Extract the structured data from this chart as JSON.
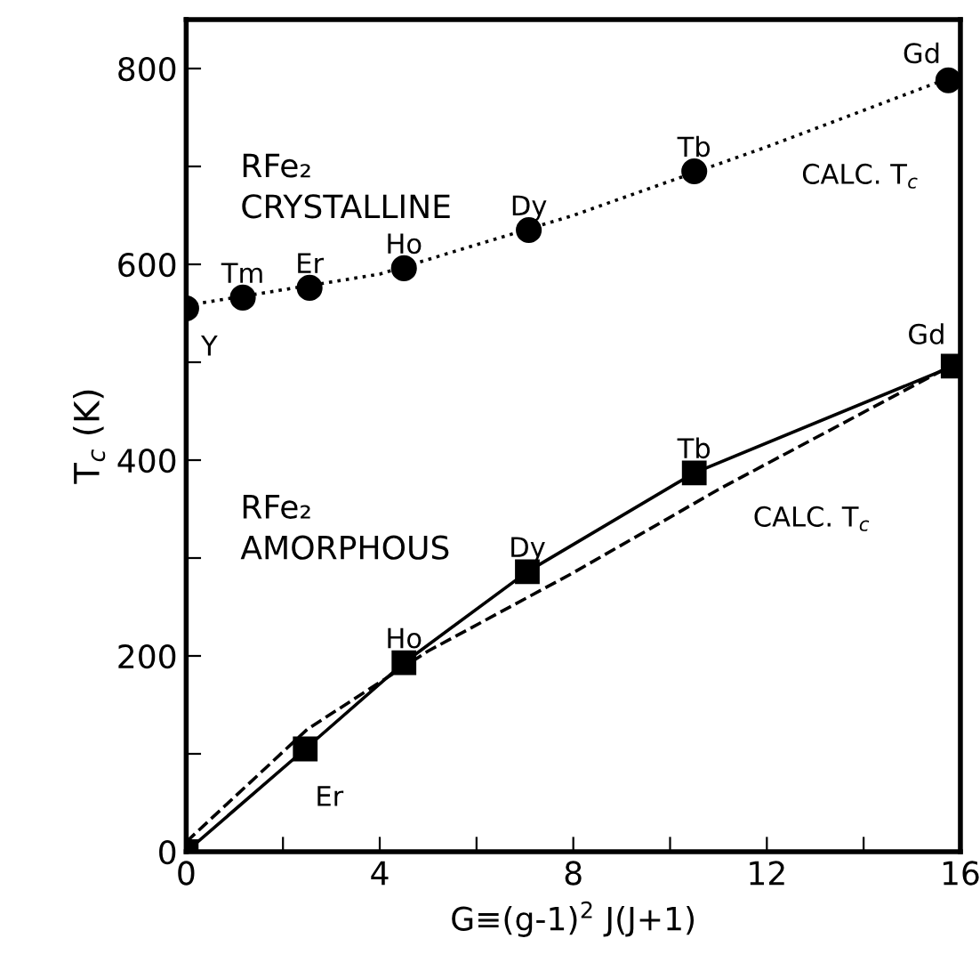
{
  "chart_data": {
    "type": "scatter",
    "xlabel": "G≡(g-1)$^{2}$ J(J+1)",
    "ylabel": "T$_{c}$ (K)",
    "xlim": [
      0,
      16
    ],
    "ylim": [
      0,
      850
    ],
    "xticks": [
      0,
      {
        "value": 2,
        "label": null
      },
      4,
      {
        "value": 6,
        "label": null
      },
      8,
      {
        "value": 10,
        "label": null
      },
      12,
      {
        "value": 14,
        "label": null
      },
      16
    ],
    "yticks": [
      0,
      {
        "value": 100,
        "label": null
      },
      200,
      {
        "value": 300,
        "label": null
      },
      400,
      {
        "value": 500,
        "label": null
      },
      600,
      {
        "value": 700,
        "label": null
      },
      800
    ],
    "grid": false,
    "legend": false,
    "series": [
      {
        "color": "#000000",
        "marker": "circle",
        "x": [
          0,
          1.17,
          2.55,
          4.5,
          7.08,
          10.5,
          15.75
        ],
        "values": [
          555,
          566,
          576,
          596,
          635,
          695,
          788
        ]
      },
      {
        "type": "line",
        "color": "#000000",
        "marker": "none",
        "line_style": "dotted",
        "x": [
          0,
          4,
          8,
          12,
          15.75
        ],
        "values": [
          558,
          590,
          650,
          720,
          790
        ]
      },
      {
        "type": "line",
        "color": "#000000",
        "marker": "square",
        "line_style": "solid",
        "x": [
          0,
          2.46,
          4.5,
          7.05,
          10.5,
          15.85
        ],
        "values": [
          0,
          105,
          193,
          286,
          387,
          496
        ]
      },
      {
        "type": "line",
        "color": "#000000",
        "marker": "none",
        "line_style": "dashed",
        "x": [
          0,
          2.5,
          5,
          8,
          11,
          15.75
        ],
        "values": [
          10,
          125,
          205,
          285,
          370,
          495
        ]
      }
    ],
    "annotations": [
      "RFe₂\nCRYSTALLINE",
      "RFe₂\nAMORPHOUS",
      {
        "text": "Y",
        "x": 0,
        "y": 555
      },
      {
        "text": "Tm",
        "x": 1.17,
        "y": 566
      },
      {
        "text": "Er",
        "x": 2.55,
        "y": 576
      },
      {
        "text": "Ho",
        "x": 4.5,
        "y": 596
      },
      {
        "text": "Dy",
        "x": 7.08,
        "y": 635
      },
      {
        "text": "Tb",
        "x": 10.5,
        "y": 695
      },
      {
        "text": "Gd",
        "x": 15.75,
        "y": 788
      },
      {
        "text": "CALC. T$_{c}$",
        "x": 12,
        "y": 720
      },
      {
        "text": "Er",
        "x": 2.46,
        "y": 105
      },
      {
        "text": "Ho",
        "x": 4.5,
        "y": 193
      },
      {
        "text": "Dy",
        "x": 7.05,
        "y": 286
      },
      {
        "text": "Tb",
        "x": 10.5,
        "y": 387
      },
      {
        "text": "Gd",
        "x": 15.85,
        "y": 496
      },
      {
        "text": "CALC. T$_{c}$",
        "x": 11,
        "y": 370
      }
    ]
  }
}
